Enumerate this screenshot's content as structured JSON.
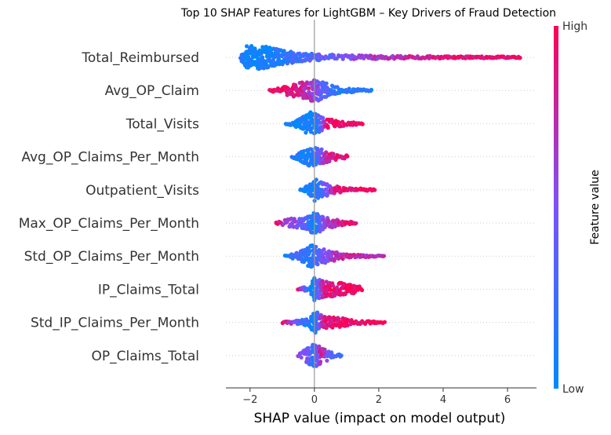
{
  "chart_data": {
    "type": "scatter",
    "title": "Top 10 SHAP Features for LightGBM – Key Drivers of Fraud Detection",
    "xlabel": "SHAP value (impact on model output)",
    "ylabel": "",
    "xlim": [
      -2.75,
      6.9
    ],
    "xticks": [
      {
        "value": -2,
        "label": "−2"
      },
      {
        "value": 0,
        "label": "0"
      },
      {
        "value": 2,
        "label": "2"
      },
      {
        "value": 4,
        "label": "4"
      },
      {
        "value": 6,
        "label": "6"
      }
    ],
    "colorbar": {
      "label": "Feature value",
      "high_label": "High",
      "low_label": "Low",
      "low_color": "#008afb",
      "high_color": "#ff0052"
    },
    "grid": false,
    "features": [
      {
        "name": "Total_Reimbursed",
        "min": -2.3,
        "max": 6.4,
        "density": [
          [
            -2.3,
            0.2,
            0.2
          ],
          [
            -2.1,
            0.95,
            0.05
          ],
          [
            -1.7,
            1.0,
            0.05
          ],
          [
            -1.3,
            0.8,
            0.1
          ],
          [
            -0.9,
            0.55,
            0.15
          ],
          [
            -0.5,
            0.4,
            0.25
          ],
          [
            0.0,
            0.3,
            0.35
          ],
          [
            0.6,
            0.22,
            0.45
          ],
          [
            1.2,
            0.18,
            0.55
          ],
          [
            2.0,
            0.15,
            0.65
          ],
          [
            2.8,
            0.12,
            0.75
          ],
          [
            3.8,
            0.1,
            0.85
          ],
          [
            5.0,
            0.08,
            0.92
          ],
          [
            6.4,
            0.06,
            0.97
          ]
        ]
      },
      {
        "name": "Avg_OP_Claim",
        "min": -1.4,
        "max": 1.8,
        "density": [
          [
            -1.4,
            0.05,
            0.95
          ],
          [
            -1.0,
            0.3,
            0.92
          ],
          [
            -0.6,
            0.55,
            0.85
          ],
          [
            -0.2,
            0.8,
            0.75
          ],
          [
            0.05,
            1.0,
            0.55
          ],
          [
            0.3,
            0.7,
            0.35
          ],
          [
            0.7,
            0.3,
            0.2
          ],
          [
            1.2,
            0.15,
            0.15
          ],
          [
            1.8,
            0.05,
            0.15
          ]
        ]
      },
      {
        "name": "Total_Visits",
        "min": -0.9,
        "max": 1.5,
        "density": [
          [
            -0.9,
            0.05,
            0.05
          ],
          [
            -0.5,
            0.4,
            0.05
          ],
          [
            -0.1,
            1.0,
            0.05
          ],
          [
            0.1,
            0.8,
            0.15
          ],
          [
            0.4,
            0.4,
            0.9
          ],
          [
            0.9,
            0.2,
            0.95
          ],
          [
            1.5,
            0.05,
            0.95
          ]
        ]
      },
      {
        "name": "Avg_OP_Claims_Per_Month",
        "min": -0.7,
        "max": 1.05,
        "density": [
          [
            -0.7,
            0.05,
            0.05
          ],
          [
            -0.4,
            0.5,
            0.05
          ],
          [
            -0.1,
            0.85,
            0.1
          ],
          [
            0.1,
            0.75,
            0.3
          ],
          [
            0.4,
            0.45,
            0.75
          ],
          [
            0.75,
            0.25,
            0.9
          ],
          [
            1.05,
            0.1,
            0.95
          ]
        ]
      },
      {
        "name": "Outpatient_Visits",
        "min": -0.45,
        "max": 1.9,
        "density": [
          [
            -0.45,
            0.05,
            0.05
          ],
          [
            -0.2,
            0.4,
            0.05
          ],
          [
            0.0,
            1.0,
            0.1
          ],
          [
            0.25,
            0.6,
            0.3
          ],
          [
            0.6,
            0.35,
            0.8
          ],
          [
            1.0,
            0.2,
            0.95
          ],
          [
            1.9,
            0.05,
            0.95
          ]
        ]
      },
      {
        "name": "Max_OP_Claims_Per_Month",
        "min": -1.2,
        "max": 1.3,
        "density": [
          [
            -1.2,
            0.05,
            0.95
          ],
          [
            -0.8,
            0.35,
            0.6
          ],
          [
            -0.3,
            0.5,
            0.4
          ],
          [
            0.0,
            1.0,
            0.05
          ],
          [
            0.3,
            0.5,
            0.5
          ],
          [
            0.8,
            0.25,
            0.9
          ],
          [
            1.3,
            0.05,
            0.95
          ]
        ]
      },
      {
        "name": "Std_OP_Claims_Per_Month",
        "min": -0.9,
        "max": 2.2,
        "density": [
          [
            -0.9,
            0.05,
            0.05
          ],
          [
            -0.5,
            0.35,
            0.3
          ],
          [
            -0.1,
            0.95,
            0.15
          ],
          [
            0.2,
            0.65,
            0.4
          ],
          [
            0.6,
            0.4,
            0.7
          ],
          [
            1.0,
            0.15,
            0.75
          ],
          [
            2.2,
            0.03,
            0.7
          ]
        ]
      },
      {
        "name": "IP_Claims_Total",
        "min": -0.5,
        "max": 1.5,
        "density": [
          [
            -0.5,
            0.05,
            0.95
          ],
          [
            -0.15,
            0.3,
            0.05
          ],
          [
            0.0,
            1.0,
            0.05
          ],
          [
            0.3,
            0.7,
            0.85
          ],
          [
            0.8,
            0.55,
            0.95
          ],
          [
            1.5,
            0.2,
            0.95
          ]
        ]
      },
      {
        "name": "Std_IP_Claims_Per_Month",
        "min": -1.0,
        "max": 2.2,
        "density": [
          [
            -1.0,
            0.05,
            0.95
          ],
          [
            -0.4,
            0.2,
            0.3
          ],
          [
            -0.1,
            0.6,
            0.05
          ],
          [
            0.0,
            1.0,
            0.05
          ],
          [
            0.3,
            0.5,
            0.85
          ],
          [
            0.8,
            0.4,
            0.95
          ],
          [
            1.2,
            0.2,
            0.95
          ],
          [
            2.2,
            0.03,
            0.95
          ]
        ]
      },
      {
        "name": "OP_Claims_Total",
        "min": -0.5,
        "max": 0.85,
        "density": [
          [
            -0.5,
            0.05,
            0.6
          ],
          [
            -0.25,
            0.6,
            0.5
          ],
          [
            0.0,
            1.0,
            0.15
          ],
          [
            0.2,
            0.7,
            0.85
          ],
          [
            0.5,
            0.3,
            0.3
          ],
          [
            0.85,
            0.05,
            0.3
          ]
        ]
      }
    ]
  }
}
